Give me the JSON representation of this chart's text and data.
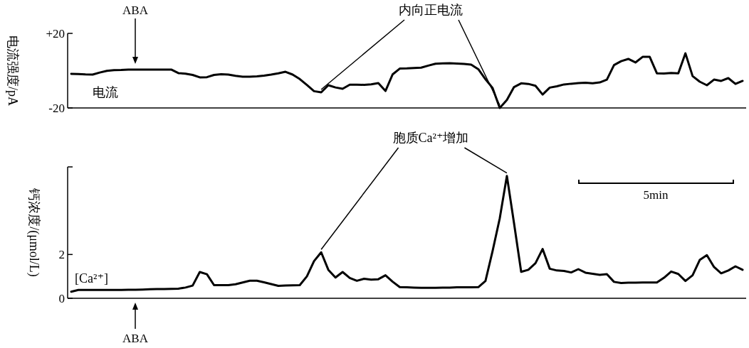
{
  "chart_data": [
    {
      "type": "line",
      "ylabel": "电流强度/pA",
      "tick_labels": "y",
      "ylim": [
        -20,
        20
      ],
      "yticks": [
        {
          "value": 20,
          "label": "+20"
        },
        {
          "value": -20,
          "label": "-20"
        }
      ],
      "categories": [
        null,
        null,
        null,
        null,
        null,
        null,
        null,
        null,
        null,
        null,
        null,
        null,
        null,
        null,
        null,
        null,
        null,
        null,
        null,
        null,
        null,
        null,
        null,
        null,
        null,
        null,
        null,
        null,
        null,
        null,
        null,
        null,
        null,
        null,
        null,
        null,
        null,
        null,
        null,
        null,
        null,
        null,
        null,
        null,
        null,
        null,
        null,
        null,
        null,
        null,
        null,
        null,
        null,
        null,
        null,
        null,
        null,
        null,
        null,
        null,
        null,
        null,
        null,
        null,
        null,
        null,
        null,
        null,
        null,
        null,
        null,
        null,
        null,
        null,
        null,
        null,
        null,
        null,
        null,
        null,
        null,
        null,
        null,
        null,
        null,
        null,
        null,
        null,
        null,
        null,
        null,
        null,
        null,
        null,
        null
      ],
      "series": [
        {
          "color": "#000000",
          "values": [
            -1.7,
            -1.8,
            -2.0,
            -2.1,
            -1.0,
            -0.1,
            0.3,
            0.4,
            0.6,
            0.6,
            0.6,
            0.6,
            0.6,
            0.6,
            0.6,
            -1.3,
            -1.6,
            -2.3,
            -3.6,
            -3.5,
            -2.3,
            -1.9,
            -2.1,
            -2.8,
            -3.2,
            -3.2,
            -3.0,
            -2.7,
            -2.1,
            -1.4,
            -0.6,
            -2.1,
            -4.5,
            -7.7,
            -11.0,
            -11.6,
            -7.8,
            -9.0,
            -9.7,
            -7.5,
            -7.5,
            -7.6,
            -7.3,
            -6.7,
            -10.9,
            -2.0,
            1.1,
            1.2,
            1.4,
            1.6,
            2.7,
            3.7,
            3.9,
            4.0,
            3.8,
            3.6,
            3.2,
            0.8,
            -4.6,
            -9.3,
            -20,
            -15.7,
            -8.8,
            -6.8,
            -7.1,
            -8.1,
            -12.8,
            -9.1,
            -8.4,
            -7.4,
            -7.0,
            -6.7,
            -6.5,
            -6.8,
            -6.3,
            -4.8,
            3.0,
            5.1,
            6.3,
            4.4,
            7.4,
            7.4,
            -1.4,
            -1.5,
            -1.2,
            -1.4,
            9.3,
            -2.9,
            -5.9,
            -7.8,
            -4.8,
            -5.5,
            -4.0,
            -7.1,
            -5.5
          ]
        }
      ],
      "annotations": [
        "ABA",
        "内向正电流",
        "电流"
      ]
    },
    {
      "type": "line",
      "ylabel": "钙浓度/(μmol/L)",
      "tick_labels": "y",
      "ylim": [
        0,
        6
      ],
      "yticks": [
        0,
        2,
        {
          "value": 6,
          "label": null
        }
      ],
      "categories": [
        null,
        null,
        null,
        null,
        null,
        null,
        null,
        null,
        null,
        null,
        null,
        null,
        null,
        null,
        null,
        null,
        null,
        null,
        null,
        null,
        null,
        null,
        null,
        null,
        null,
        null,
        null,
        null,
        null,
        null,
        null,
        null,
        null,
        null,
        null,
        null,
        null,
        null,
        null,
        null,
        null,
        null,
        null,
        null,
        null,
        null,
        null,
        null,
        null,
        null,
        null,
        null,
        null,
        null,
        null,
        null,
        null,
        null,
        null,
        null,
        null,
        null,
        null,
        null,
        null,
        null,
        null,
        null,
        null,
        null,
        null,
        null,
        null,
        null,
        null,
        null,
        null,
        null,
        null,
        null,
        null,
        null,
        null,
        null,
        null,
        null,
        null,
        null,
        null,
        null,
        null,
        null,
        null,
        null,
        null
      ],
      "series": [
        {
          "color": "#000000",
          "values": [
            0.3,
            0.38,
            0.38,
            0.38,
            0.38,
            0.38,
            0.38,
            0.38,
            0.39,
            0.39,
            0.4,
            0.41,
            0.42,
            0.42,
            0.43,
            0.44,
            0.49,
            0.58,
            1.2,
            1.1,
            0.6,
            0.6,
            0.6,
            0.64,
            0.72,
            0.8,
            0.8,
            0.73,
            0.65,
            0.57,
            0.58,
            0.59,
            0.6,
            1.0,
            1.7,
            2.1,
            1.3,
            0.95,
            1.2,
            0.93,
            0.8,
            0.89,
            0.85,
            0.87,
            1.05,
            0.76,
            0.51,
            0.5,
            0.49,
            0.48,
            0.48,
            0.48,
            0.49,
            0.49,
            0.5,
            0.5,
            0.5,
            0.51,
            0.79,
            2.16,
            3.65,
            5.59,
            3.43,
            1.21,
            1.3,
            1.6,
            2.25,
            1.35,
            1.27,
            1.25,
            1.18,
            1.33,
            1.17,
            1.12,
            1.07,
            1.1,
            0.75,
            0.7,
            0.71,
            0.71,
            0.72,
            0.72,
            0.72,
            0.94,
            1.22,
            1.11,
            0.79,
            1.05,
            1.75,
            1.97,
            1.43,
            1.14,
            1.27,
            1.46,
            1.3
          ]
        }
      ],
      "annotations": [
        "胞质Ca²⁺增加",
        "5min",
        "[Ca²⁺]",
        "ABA"
      ]
    }
  ]
}
